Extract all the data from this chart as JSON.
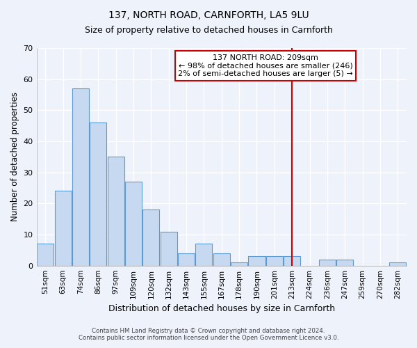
{
  "title": "137, NORTH ROAD, CARNFORTH, LA5 9LU",
  "subtitle": "Size of property relative to detached houses in Carnforth",
  "xlabel": "Distribution of detached houses by size in Carnforth",
  "ylabel": "Number of detached properties",
  "bar_labels": [
    "51sqm",
    "63sqm",
    "74sqm",
    "86sqm",
    "97sqm",
    "109sqm",
    "120sqm",
    "132sqm",
    "143sqm",
    "155sqm",
    "167sqm",
    "178sqm",
    "190sqm",
    "201sqm",
    "213sqm",
    "224sqm",
    "236sqm",
    "247sqm",
    "259sqm",
    "270sqm",
    "282sqm"
  ],
  "bar_heights": [
    7,
    24,
    57,
    46,
    35,
    27,
    18,
    11,
    4,
    7,
    4,
    1,
    3,
    3,
    3,
    0,
    2,
    2,
    0,
    0,
    1
  ],
  "bar_color": "#c6d9f0",
  "bar_edge_color": "#5b9bd5",
  "vline_x": 14,
  "vline_color": "#cc0000",
  "ylim": [
    0,
    70
  ],
  "yticks": [
    0,
    10,
    20,
    30,
    40,
    50,
    60,
    70
  ],
  "annotation_title": "137 NORTH ROAD: 209sqm",
  "annotation_line1": "← 98% of detached houses are smaller (246)",
  "annotation_line2": "2% of semi-detached houses are larger (5) →",
  "annotation_box_color": "#ffffff",
  "annotation_box_edge": "#cc0000",
  "footer_line1": "Contains HM Land Registry data © Crown copyright and database right 2024.",
  "footer_line2": "Contains public sector information licensed under the Open Government Licence v3.0.",
  "bg_color": "#eef2fa",
  "grid_color": "#ffffff",
  "title_fontsize": 10,
  "subtitle_fontsize": 9
}
